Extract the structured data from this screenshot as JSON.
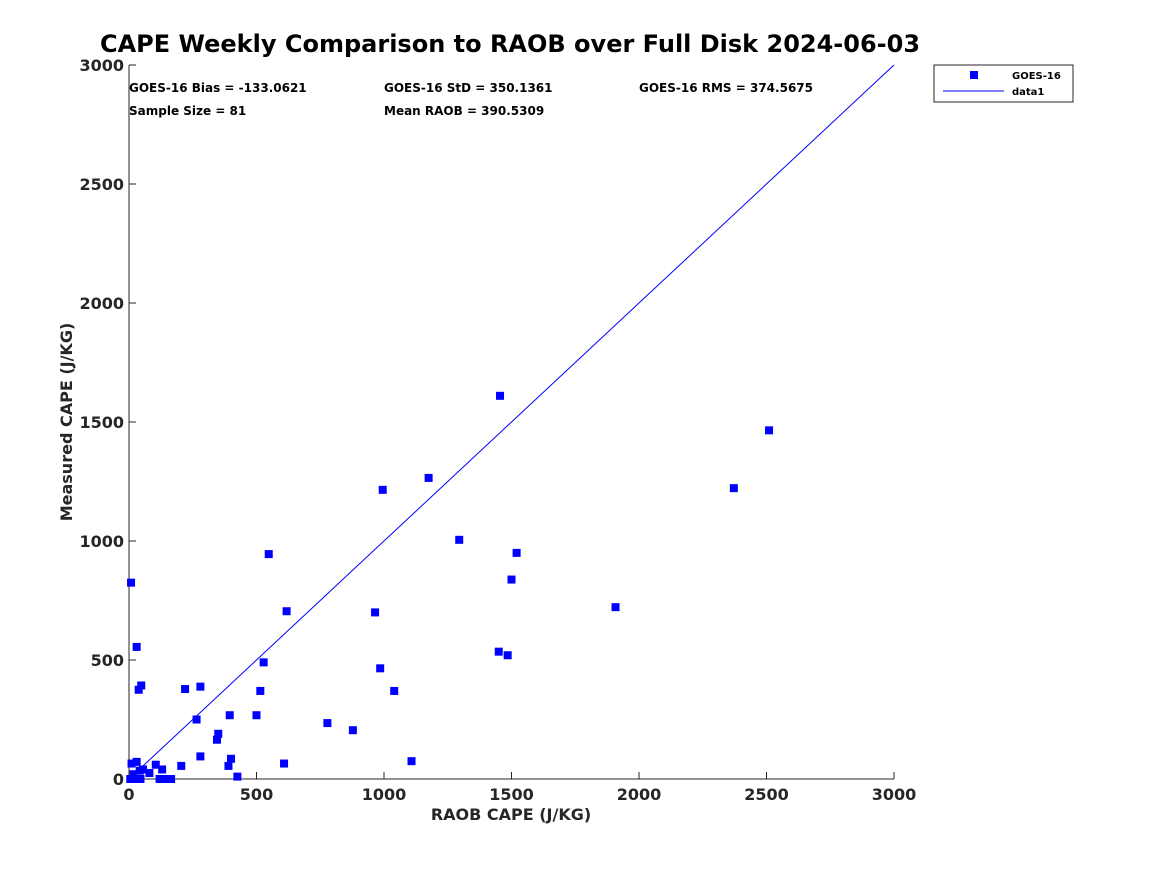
{
  "chart_data": {
    "type": "scatter",
    "title": "CAPE Weekly Comparison to RAOB over Full Disk 2024-06-03",
    "xlabel": "RAOB CAPE (J/KG)",
    "ylabel": "Measured CAPE (J/KG)",
    "xlim": [
      0,
      3000
    ],
    "ylim": [
      0,
      3000
    ],
    "x_ticks": [
      0,
      500,
      1000,
      1500,
      2000,
      2500,
      3000
    ],
    "y_ticks": [
      0,
      500,
      1000,
      1500,
      2000,
      2500,
      3000
    ],
    "x_tick_labels": [
      "0",
      "500",
      "1000",
      "1500",
      "2000",
      "2500",
      "3000"
    ],
    "y_tick_labels": [
      "0",
      "500",
      "1000",
      "1500",
      "2000",
      "2500",
      "3000"
    ],
    "grid": false,
    "legend_position": "outside top-right",
    "stats": {
      "bias": "GOES-16 Bias = -133.0621",
      "std": "GOES-16 StD = 350.1361",
      "rms": "GOES-16 RMS = 374.5675",
      "sample_size": "Sample Size = 81",
      "mean_raob": "Mean RAOB = 390.5309"
    },
    "series": [
      {
        "name": "GOES-16",
        "kind": "scatter",
        "color": "#0000ff",
        "marker": "square",
        "points": [
          [
            8,
            825
          ],
          [
            30,
            555
          ],
          [
            38,
            375
          ],
          [
            48,
            393
          ],
          [
            30,
            72
          ],
          [
            10,
            65
          ],
          [
            5,
            0
          ],
          [
            15,
            0
          ],
          [
            25,
            0
          ],
          [
            38,
            0
          ],
          [
            45,
            0
          ],
          [
            18,
            20
          ],
          [
            42,
            35
          ],
          [
            55,
            40
          ],
          [
            80,
            25
          ],
          [
            105,
            60
          ],
          [
            130,
            40
          ],
          [
            120,
            0
          ],
          [
            150,
            0
          ],
          [
            165,
            0
          ],
          [
            205,
            55
          ],
          [
            220,
            378
          ],
          [
            265,
            250
          ],
          [
            280,
            388
          ],
          [
            280,
            95
          ],
          [
            345,
            165
          ],
          [
            350,
            190
          ],
          [
            390,
            55
          ],
          [
            395,
            268
          ],
          [
            400,
            85
          ],
          [
            425,
            10
          ],
          [
            500,
            268
          ],
          [
            515,
            370
          ],
          [
            528,
            490
          ],
          [
            548,
            945
          ],
          [
            608,
            65
          ],
          [
            618,
            705
          ],
          [
            778,
            235
          ],
          [
            878,
            205
          ],
          [
            965,
            700
          ],
          [
            985,
            465
          ],
          [
            995,
            1215
          ],
          [
            1040,
            370
          ],
          [
            1108,
            75
          ],
          [
            1175,
            1265
          ],
          [
            1295,
            1005
          ],
          [
            1450,
            535
          ],
          [
            1455,
            1610
          ],
          [
            1485,
            520
          ],
          [
            1500,
            838
          ],
          [
            1520,
            950
          ],
          [
            1908,
            722
          ],
          [
            2372,
            1222
          ],
          [
            2510,
            1465
          ]
        ]
      },
      {
        "name": "data1",
        "kind": "line",
        "color": "#0000ff",
        "points": [
          [
            0,
            0
          ],
          [
            3000,
            3000
          ]
        ]
      }
    ]
  }
}
